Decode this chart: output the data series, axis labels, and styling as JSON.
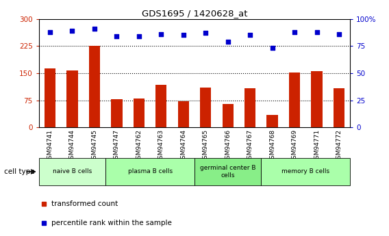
{
  "title": "GDS1695 / 1420628_at",
  "categories": [
    "GSM94741",
    "GSM94744",
    "GSM94745",
    "GSM94747",
    "GSM94762",
    "GSM94763",
    "GSM94764",
    "GSM94765",
    "GSM94766",
    "GSM94767",
    "GSM94768",
    "GSM94769",
    "GSM94771",
    "GSM94772"
  ],
  "bar_values": [
    163,
    158,
    225,
    78,
    80,
    118,
    72,
    110,
    65,
    108,
    35,
    152,
    155,
    108
  ],
  "percentile_values": [
    88,
    89,
    91,
    84,
    84,
    86,
    85,
    87,
    79,
    85,
    73,
    88,
    88,
    86
  ],
  "bar_color": "#cc2200",
  "dot_color": "#0000cc",
  "ylim_left": [
    0,
    300
  ],
  "ylim_right": [
    0,
    100
  ],
  "yticks_left": [
    0,
    75,
    150,
    225,
    300
  ],
  "yticks_right": [
    0,
    25,
    50,
    75,
    100
  ],
  "ytick_labels_right": [
    "0",
    "25",
    "50",
    "75",
    "100%"
  ],
  "grid_values": [
    75,
    150,
    225
  ],
  "cell_type_groups": [
    {
      "label": "naive B cells",
      "start": 0,
      "end": 3,
      "color": "#ccffcc"
    },
    {
      "label": "plasma B cells",
      "start": 3,
      "end": 7,
      "color": "#aaffaa"
    },
    {
      "label": "germinal center B\ncells",
      "start": 7,
      "end": 10,
      "color": "#88ee88"
    },
    {
      "label": "memory B cells",
      "start": 10,
      "end": 14,
      "color": "#aaffaa"
    }
  ],
  "legend_items": [
    {
      "label": "transformed count",
      "color": "#cc2200"
    },
    {
      "label": "percentile rank within the sample",
      "color": "#0000cc"
    }
  ],
  "cell_type_label": "cell type",
  "background_color": "#ffffff",
  "plot_bg_color": "#ffffff",
  "tick_label_color_left": "#cc2200",
  "tick_label_color_right": "#0000cc",
  "bar_width": 0.5
}
